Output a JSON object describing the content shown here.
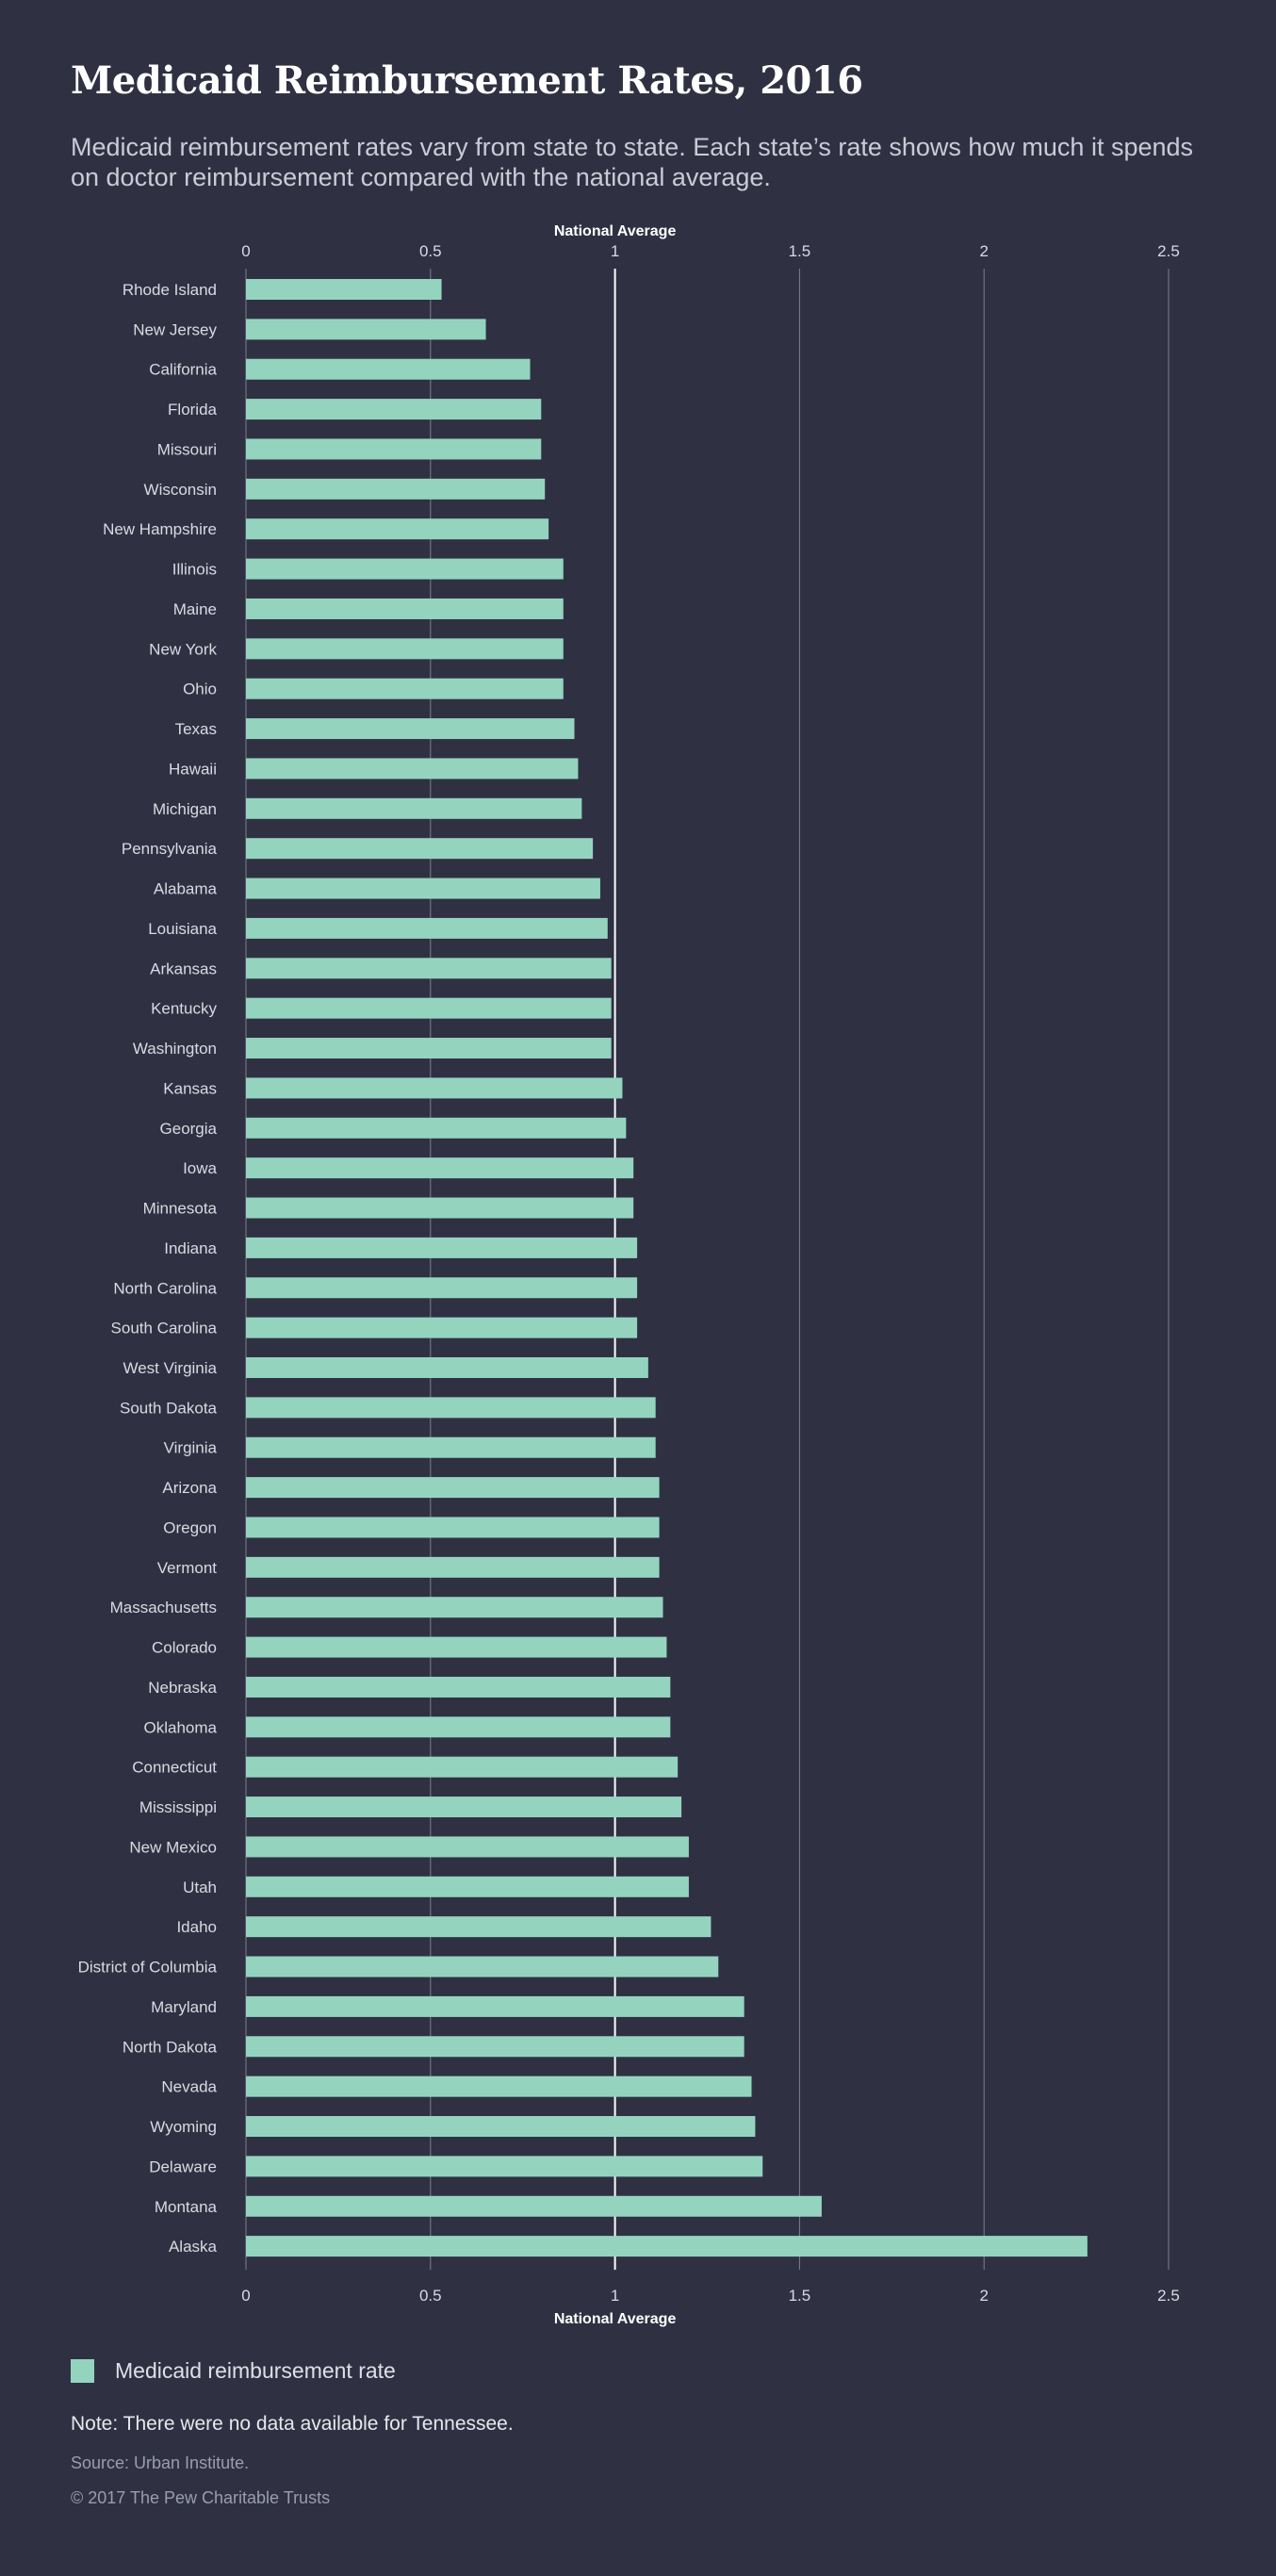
{
  "header": {
    "title": "Medicaid Reimbursement Rates, 2016",
    "subtitle": "Medicaid reimbursement rates vary from state to state. Each state’s rate shows how much it spends on doctor reimbursement compared with the national average."
  },
  "chart_data": {
    "type": "bar",
    "orientation": "horizontal",
    "xlim": [
      0,
      2.5
    ],
    "xticks": [
      "0",
      "0.5",
      "1",
      "1.5",
      "2",
      "2.5"
    ],
    "reference_line": {
      "value": 1,
      "label": "National Average"
    },
    "grid": true,
    "bar_color": "#94d4bf",
    "categories": [
      "Rhode Island",
      "New Jersey",
      "California",
      "Florida",
      "Missouri",
      "Wisconsin",
      "New Hampshire",
      "Illinois",
      "Maine",
      "New York",
      "Ohio",
      "Texas",
      "Hawaii",
      "Michigan",
      "Pennsylvania",
      "Alabama",
      "Louisiana",
      "Arkansas",
      "Kentucky",
      "Washington",
      "Kansas",
      "Georgia",
      "Iowa",
      "Minnesota",
      "Indiana",
      "North Carolina",
      "South Carolina",
      "West Virginia",
      "South Dakota",
      "Virginia",
      "Arizona",
      "Oregon",
      "Vermont",
      "Massachusetts",
      "Colorado",
      "Nebraska",
      "Oklahoma",
      "Connecticut",
      "Mississippi",
      "New Mexico",
      "Utah",
      "Idaho",
      "District of Columbia",
      "Maryland",
      "North Dakota",
      "Nevada",
      "Wyoming",
      "Delaware",
      "Montana",
      "Alaska"
    ],
    "series": [
      {
        "name": "Medicaid reimbursement rate",
        "values": [
          0.53,
          0.65,
          0.77,
          0.8,
          0.8,
          0.81,
          0.82,
          0.86,
          0.86,
          0.86,
          0.86,
          0.89,
          0.9,
          0.91,
          0.94,
          0.96,
          0.98,
          0.99,
          0.99,
          0.99,
          1.02,
          1.03,
          1.05,
          1.05,
          1.06,
          1.06,
          1.06,
          1.09,
          1.11,
          1.11,
          1.12,
          1.12,
          1.12,
          1.13,
          1.14,
          1.15,
          1.15,
          1.17,
          1.18,
          1.2,
          1.2,
          1.26,
          1.28,
          1.35,
          1.35,
          1.37,
          1.38,
          1.4,
          1.56,
          2.28
        ]
      }
    ]
  },
  "legend": {
    "label": "Medicaid reimbursement rate",
    "color": "#94d4bf"
  },
  "footer": {
    "note": "Note: There were no data available for Tennessee.",
    "source": "Source: Urban Institute.",
    "copyright": "© 2017 The Pew Charitable Trusts"
  }
}
